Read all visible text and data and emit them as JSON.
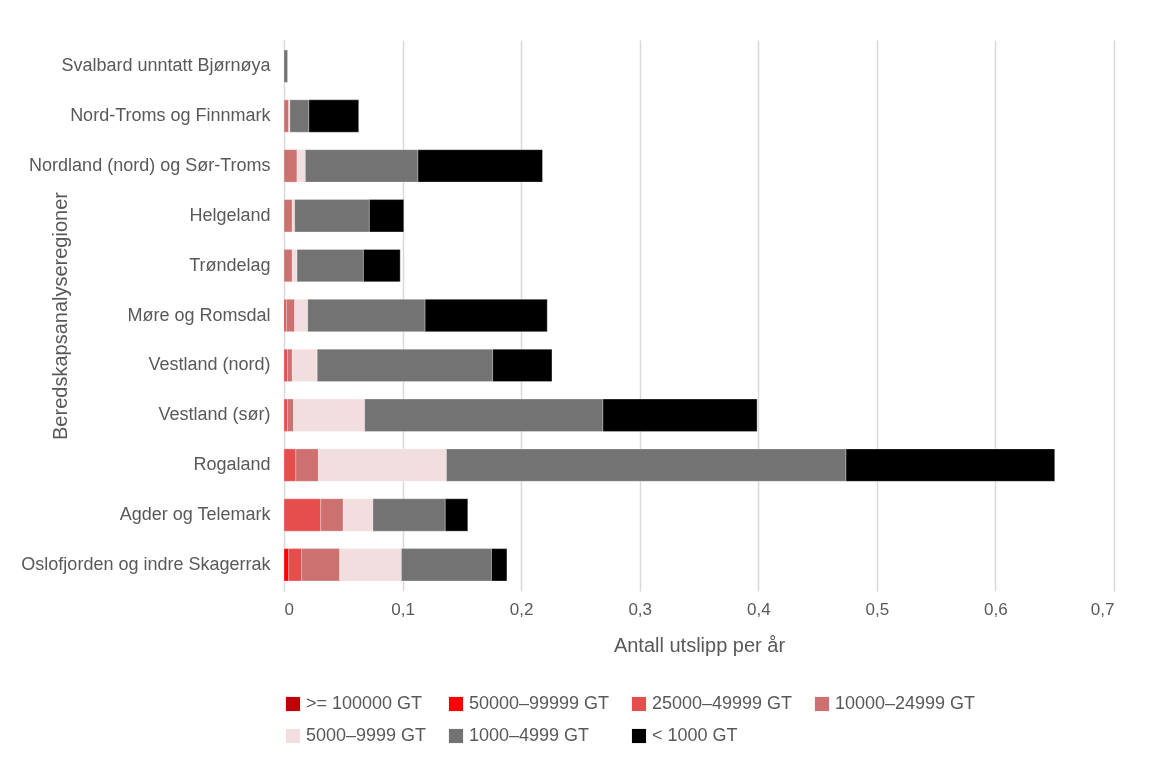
{
  "chart_data": {
    "type": "bar",
    "orientation": "horizontal",
    "stacked": true,
    "xlabel": "Antall utslipp per år",
    "ylabel": "Beredskapsanalyseregioner",
    "categories": [
      "Svalbard unntatt Bjørnøya",
      "Nord-Troms og Finnmark",
      "Nordland (nord) og Sør-Troms",
      "Helgeland",
      "Trøndelag",
      "Møre og Romsdal",
      "Vestland (nord)",
      "Vestland (sør)",
      "Rogaland",
      "Agder og Telemark",
      "Oslofjorden og indre Skagerrak"
    ],
    "series": [
      {
        "name": ">= 100000 GT",
        "color": "#c00000",
        "values": [
          null,
          null,
          null,
          null,
          null,
          null,
          null,
          null,
          null,
          null,
          null
        ]
      },
      {
        "name": "50000–99999 GT",
        "color": "#ff0000",
        "values": [
          null,
          null,
          null,
          null,
          null,
          null,
          null,
          null,
          null,
          null,
          0.004
        ]
      },
      {
        "name": "25000–49999 GT",
        "color": "#e64d4d",
        "values": [
          null,
          null,
          null,
          null,
          null,
          0.002,
          0.003,
          0.003,
          0.01,
          0.031,
          0.011
        ]
      },
      {
        "name": "10000–24999 GT",
        "color": "#cc7070",
        "values": [
          null,
          0.004,
          0.011,
          0.007,
          0.007,
          0.007,
          0.004,
          0.005,
          0.019,
          0.019,
          0.032
        ]
      },
      {
        "name": "5000–9999 GT",
        "color": "#f2dede",
        "values": [
          null,
          0.001,
          0.007,
          0.002,
          0.004,
          0.011,
          0.021,
          0.06,
          0.108,
          0.025,
          0.052
        ]
      },
      {
        "name": "1000–4999 GT",
        "color": "#737373",
        "values": [
          0.003,
          0.016,
          0.095,
          0.063,
          0.056,
          0.099,
          0.148,
          0.201,
          0.337,
          0.061,
          0.076
        ]
      },
      {
        "name": "< 1000 GT",
        "color": "#000000",
        "values": [
          null,
          0.042,
          0.105,
          0.029,
          0.031,
          0.103,
          0.05,
          0.13,
          0.176,
          0.019,
          0.013
        ]
      }
    ],
    "xlim": [
      0,
      0.7
    ],
    "xticks": [
      0,
      {
        "value": 0.1,
        "label": "0,1"
      },
      {
        "value": 0.2,
        "label": "0,2"
      },
      {
        "value": 0.3,
        "label": "0,3"
      },
      {
        "value": 0.4,
        "label": "0,4"
      },
      {
        "value": 0.5,
        "label": "0,5"
      },
      {
        "value": 0.6,
        "label": "0,6"
      },
      {
        "value": 0.7,
        "label": "0,7"
      }
    ],
    "grid": "x",
    "legend": "bottom"
  }
}
